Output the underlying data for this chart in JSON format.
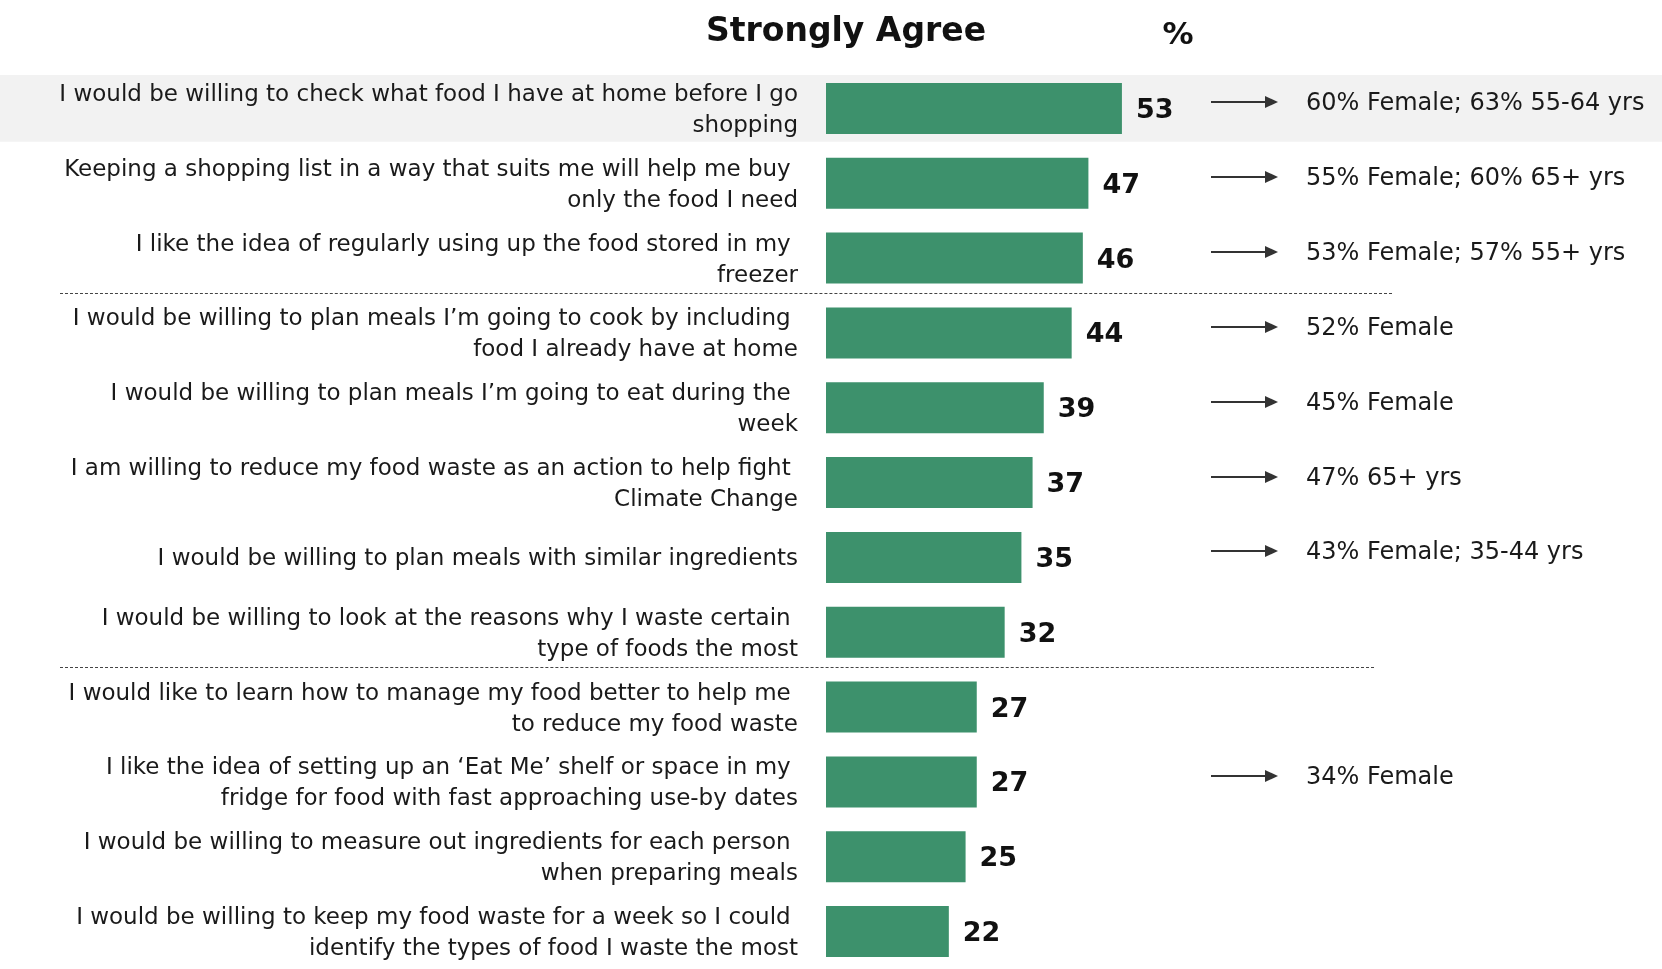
{
  "chart_data": {
    "type": "bar",
    "orientation": "horizontal",
    "title": "Strongly Agree",
    "xlabel": "%",
    "data_labels": true,
    "categories": [
      "I would be willing to check what food I have at home before I go shopping",
      "Keeping a shopping list in a way that suits me will help me buy only the food I need",
      "I like the idea of regularly using up the food stored in my freezer",
      "I would be willing to plan meals I’m going to cook by including food I already have at home",
      "I would be willing to plan meals I’m going to eat during the week",
      "I am willing to reduce my food waste as an action to help fight Climate Change",
      "I would be willing to plan meals with similar ingredients",
      "I would be willing to look at the reasons why I waste certain type of foods the most",
      "I would like to learn how to manage my food better to help me to reduce my food waste",
      "I like the idea of setting up an ‘Eat Me’ shelf or space in my fridge for food with fast approaching use-by dates",
      "I would be willing to measure out ingredients for each person when preparing meals",
      "I would be willing to keep my food waste for a week so I could identify the types of food I waste the most"
    ],
    "values": [
      53,
      47,
      46,
      44,
      39,
      37,
      35,
      32,
      27,
      27,
      25,
      22
    ],
    "color": "#3d916c",
    "bands": [
      {
        "axis": "y",
        "from": "I would be willing to check what food I have at home before I go shopping",
        "to": "I would be willing to check what food I have at home before I go shopping",
        "color": "#f2f2f2"
      }
    ],
    "annotations": [
      "60% Female; 63% 55-64 yrs",
      "55% Female; 60% 65+ yrs",
      "53% Female; 57% 55+ yrs",
      "52% Female",
      "45% Female",
      "47% 65+ yrs",
      "43% Female; 35-44 yrs",
      "34% Female"
    ]
  }
}
